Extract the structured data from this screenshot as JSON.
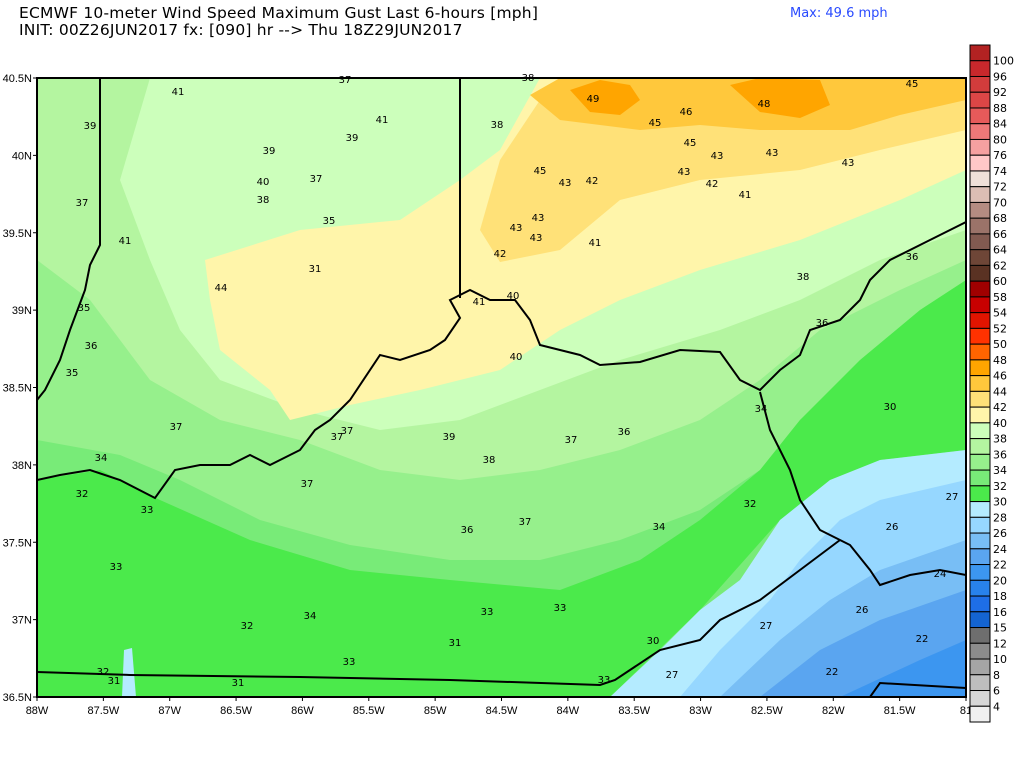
{
  "header": {
    "title_line1": "ECMWF 10-meter Wind Speed Maximum Gust Last 6-hours [mph]",
    "title_line2": "INIT: 00Z26JUN2017 fx: [090] hr --> Thu 18Z29JUN2017",
    "max_label": "Max: 49.6 mph"
  },
  "axes": {
    "lat_ticks": [
      "40.5N",
      "40N",
      "39.5N",
      "39N",
      "38.5N",
      "38N",
      "37.5N",
      "37N",
      "36.5N"
    ],
    "lon_ticks": [
      "88W",
      "87.5W",
      "87W",
      "86.5W",
      "86W",
      "85.5W",
      "85W",
      "84.5W",
      "84W",
      "83.5W",
      "83W",
      "82.5W",
      "82W",
      "81.5W",
      "81"
    ]
  },
  "colorbar": {
    "labels": [
      "100",
      "96",
      "92",
      "88",
      "84",
      "80",
      "76",
      "74",
      "72",
      "70",
      "68",
      "66",
      "64",
      "62",
      "60",
      "58",
      "54",
      "52",
      "50",
      "48",
      "46",
      "44",
      "42",
      "40",
      "38",
      "36",
      "34",
      "32",
      "30",
      "28",
      "26",
      "24",
      "22",
      "20",
      "18",
      "16",
      "15",
      "12",
      "10",
      "8",
      "6",
      "4"
    ],
    "colors": [
      "#b22222",
      "#c8282c",
      "#d23c3c",
      "#dc4646",
      "#e65a5a",
      "#ee7878",
      "#f5a0a0",
      "#ffc8c8",
      "#f0e0d8",
      "#dcbeb4",
      "#b48c82",
      "#9b7369",
      "#825a50",
      "#6e4637",
      "#5a3223",
      "#a00000",
      "#c80000",
      "#e11400",
      "#ff3200",
      "#ff6400",
      "#ffa500",
      "#ffc83c",
      "#ffe178",
      "#fff5aa",
      "#ccffbb",
      "#b4f5a0",
      "#96f08c",
      "#78eb78",
      "#4bea4b",
      "#b4ebff",
      "#96d7ff",
      "#78bef5",
      "#5aa5f0",
      "#3c96f0",
      "#2882eb",
      "#1e6ee6",
      "#1464d2",
      "#6e6e6e",
      "#8c8c8c",
      "#a5a5a5",
      "#bebebe",
      "#d7d7d7",
      "#f0f0f0"
    ]
  },
  "map_values": [
    "41",
    "37",
    "38",
    "39",
    "41",
    "39",
    "38",
    "49",
    "46",
    "45",
    "48",
    "45",
    "39",
    "45",
    "43",
    "43",
    "40",
    "37",
    "45",
    "43",
    "42",
    "43",
    "42",
    "43",
    "38",
    "37",
    "35",
    "41",
    "43",
    "43",
    "43",
    "41",
    "41",
    "42",
    "31",
    "36",
    "38",
    "44",
    "41",
    "40",
    "35",
    "36",
    "36",
    "40",
    "35",
    "34",
    "30",
    "37",
    "37",
    "37",
    "39",
    "37",
    "36",
    "34",
    "38",
    "37",
    "32",
    "33",
    "32",
    "27",
    "36",
    "37",
    "34",
    "26",
    "33",
    "24",
    "34",
    "26",
    "32",
    "33",
    "33",
    "27",
    "22",
    "31",
    "30",
    "33",
    "32",
    "31",
    "31",
    "33",
    "27",
    "22"
  ]
}
